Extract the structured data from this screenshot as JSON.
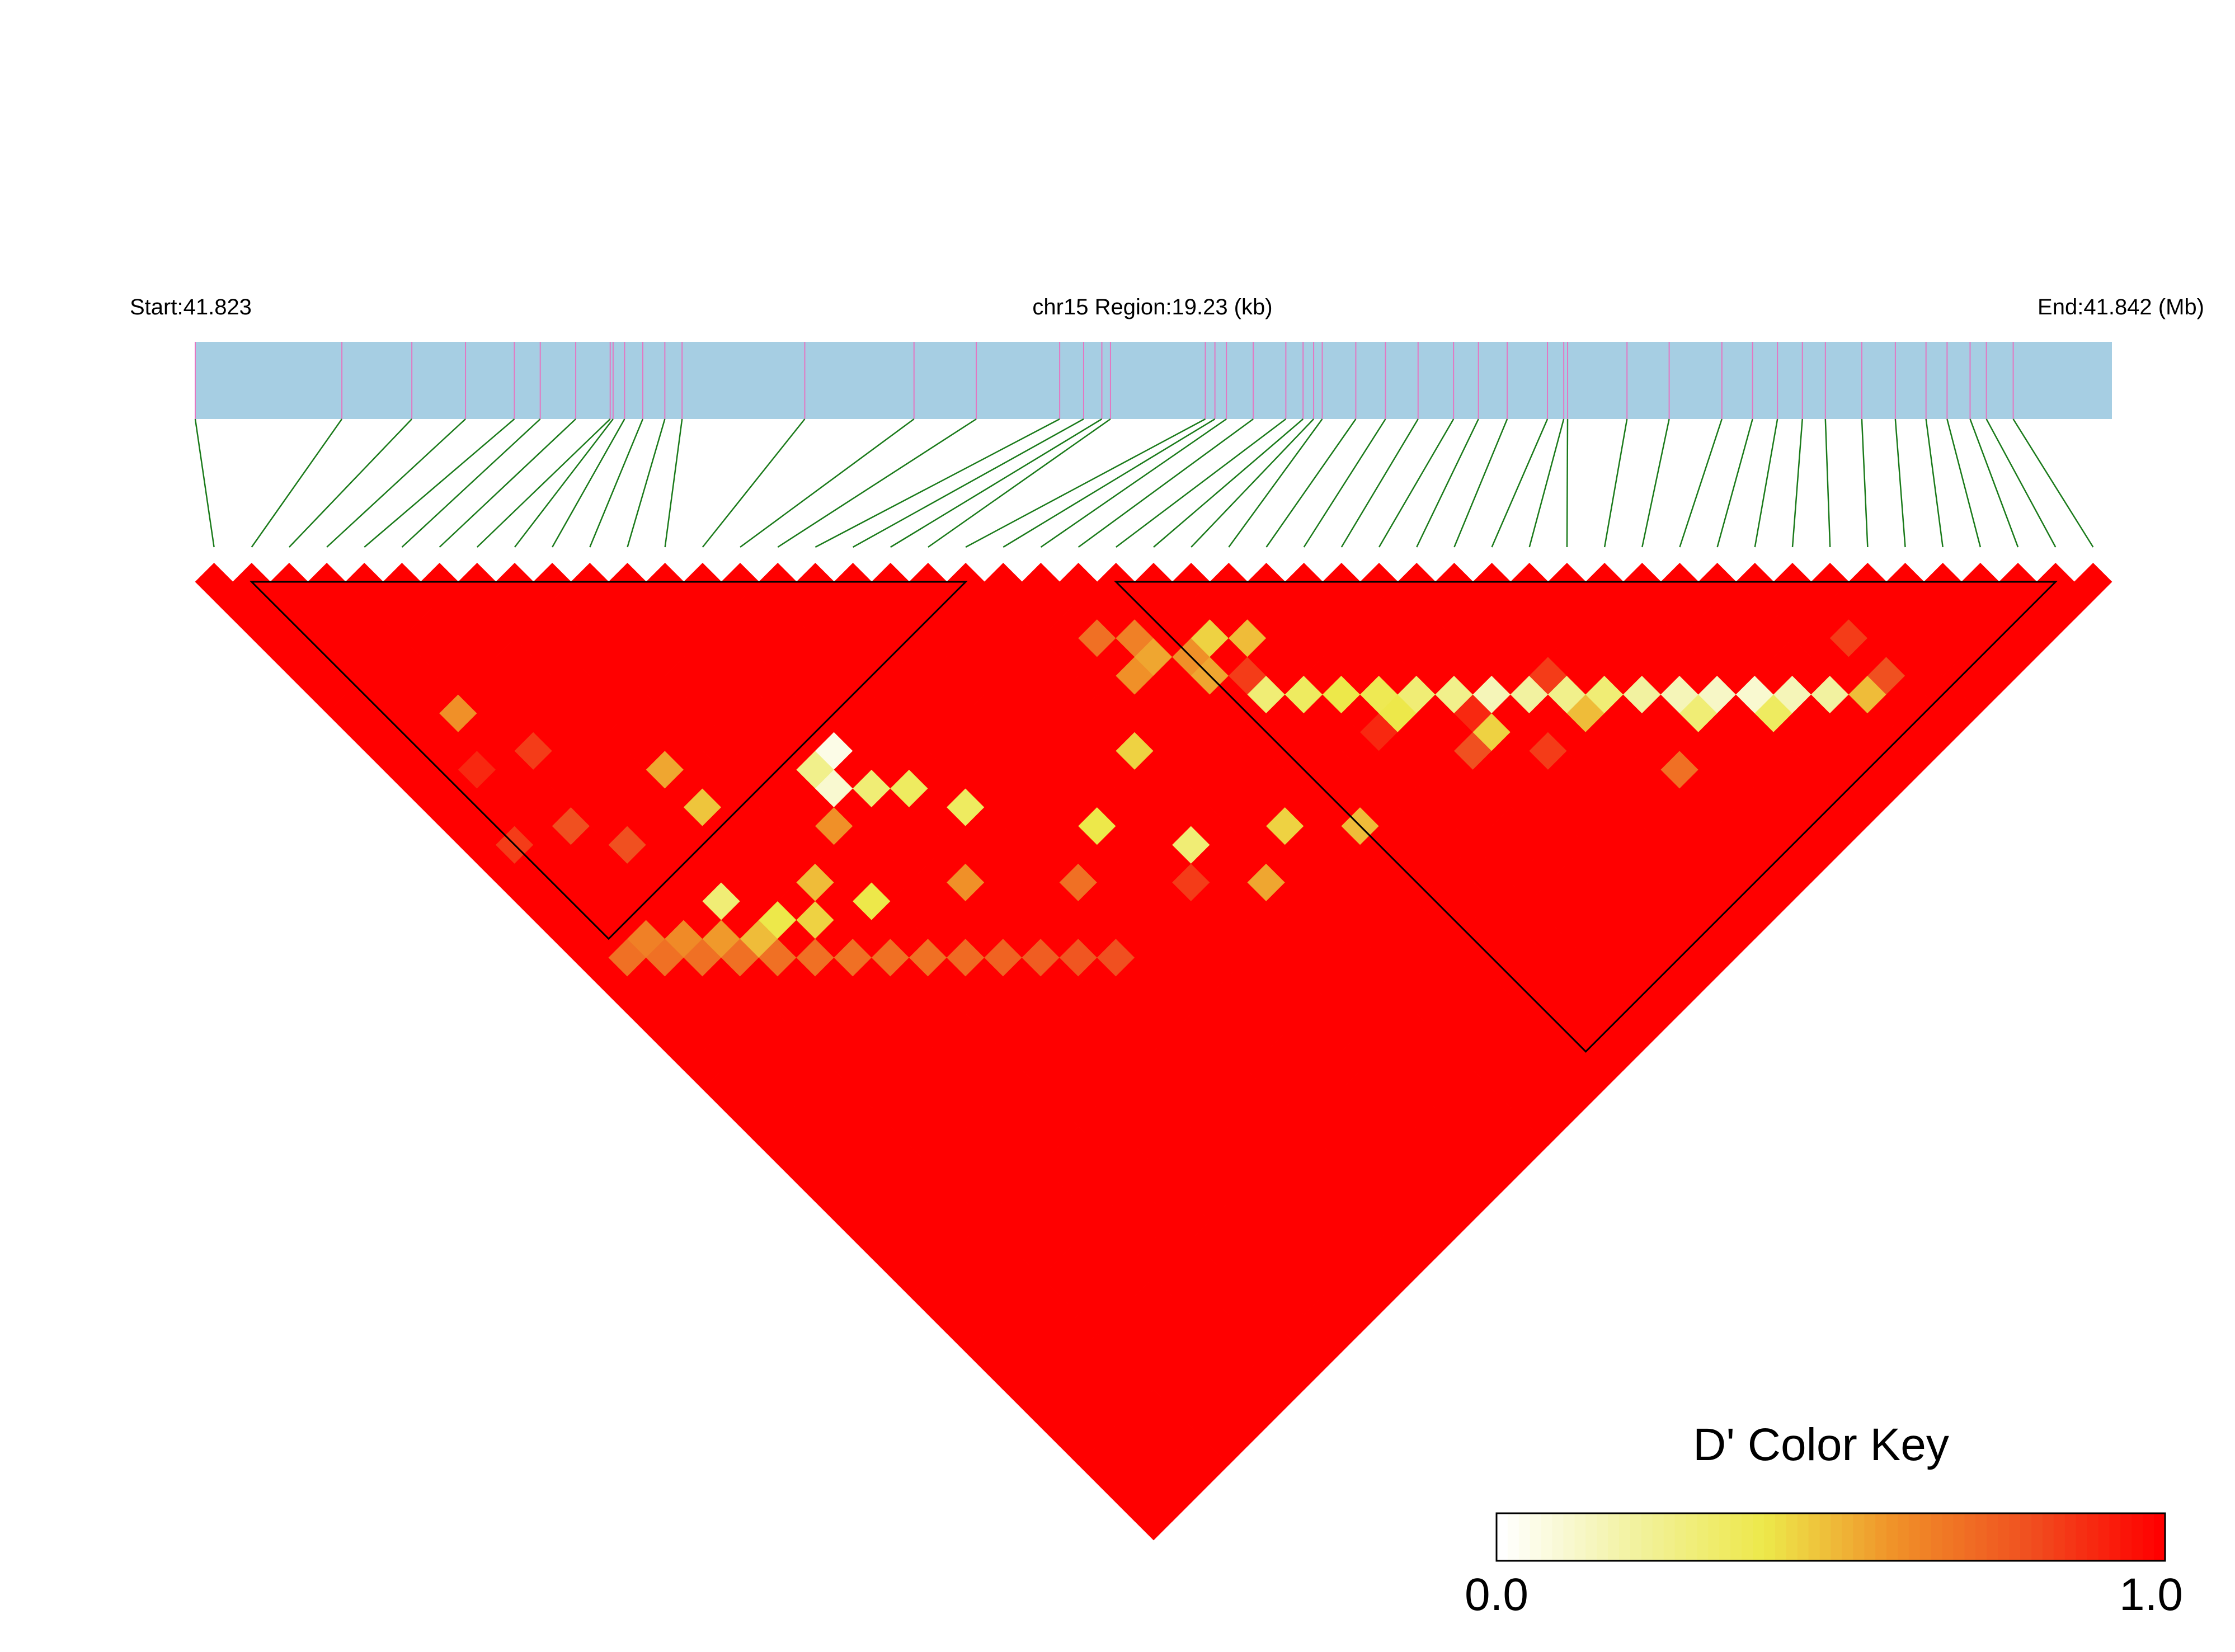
{
  "chart_data": {
    "type": "heatmap",
    "subtype": "linkage-disequilibrium-triangle",
    "chromosome": "chr15",
    "header": {
      "start_label": "Start:41.823",
      "region_label": "chr15 Region:19.23 (kb)",
      "end_label": "End:41.842 (Mb)"
    },
    "region_kb": 19.23,
    "start_mb": 41.823,
    "end_mb": 41.842,
    "n_snps": 51,
    "snp_relative_positions": [
      0.0,
      0.0765,
      0.113,
      0.141,
      0.1665,
      0.18,
      0.1985,
      0.2165,
      0.218,
      0.224,
      0.2335,
      0.245,
      0.254,
      0.318,
      0.375,
      0.4075,
      0.451,
      0.4635,
      0.473,
      0.4775,
      0.527,
      0.532,
      0.538,
      0.552,
      0.569,
      0.578,
      0.5835,
      0.588,
      0.6055,
      0.621,
      0.638,
      0.6565,
      0.6695,
      0.6845,
      0.7055,
      0.714,
      0.716,
      0.747,
      0.769,
      0.7965,
      0.8125,
      0.8255,
      0.8385,
      0.8505,
      0.8695,
      0.887,
      0.903,
      0.914,
      0.926,
      0.9345,
      0.9485
    ],
    "color_scale": {
      "title": "D' Color Key",
      "min_label": "0.0",
      "max_label": "1.0",
      "min": 0.0,
      "max": 1.0,
      "colors": [
        "#ffffff",
        "#f2f2a0",
        "#ede84a",
        "#f09028",
        "#f05020",
        "#ff0000"
      ]
    },
    "default_dprime": 1.0,
    "low_dprime_pairs": [
      [
        1,
        15,
        0.85
      ],
      [
        7,
        17,
        0.55
      ],
      [
        3,
        10,
        0.6
      ],
      [
        7,
        19,
        0.48
      ],
      [
        4,
        13,
        0.85
      ],
      [
        3,
        16,
        0.8
      ],
      [
        4,
        18,
        0.8
      ],
      [
        2,
        12,
        0.9
      ],
      [
        10,
        23,
        0.6
      ],
      [
        20,
        29,
        0.45
      ],
      [
        31,
        40,
        0.85
      ],
      [
        27,
        35,
        0.9
      ],
      [
        33,
        38,
        0.85
      ],
      [
        42,
        45,
        0.85
      ],
      [
        29,
        38,
        0.8
      ],
      [
        30,
        37,
        0.9
      ],
      [
        34,
        44,
        0.7
      ],
      [
        42,
        47,
        0.8
      ],
      [
        25,
        30,
        0.85
      ],
      [
        1,
        21,
        0.7
      ],
      [
        2,
        22,
        0.7
      ],
      [
        3,
        23,
        0.7
      ],
      [
        4,
        24,
        0.7
      ],
      [
        5,
        25,
        0.7
      ],
      [
        6,
        26,
        0.7
      ],
      [
        7,
        27,
        0.7
      ],
      [
        8,
        28,
        0.7
      ],
      [
        9,
        29,
        0.7
      ],
      [
        10,
        30,
        0.72
      ],
      [
        11,
        31,
        0.74
      ],
      [
        12,
        32,
        0.76
      ],
      [
        13,
        33,
        0.78
      ],
      [
        14,
        34,
        0.8
      ],
      [
        2,
        21,
        0.65
      ],
      [
        3,
        22,
        0.62
      ],
      [
        4,
        23,
        0.58
      ],
      [
        5,
        24,
        0.5
      ],
      [
        11,
        22,
        0.1
      ],
      [
        11,
        21,
        0.25
      ],
      [
        12,
        23,
        0.3
      ],
      [
        13,
        24,
        0.35
      ],
      [
        12,
        21,
        0.05
      ],
      [
        6,
        24,
        0.4
      ],
      [
        7,
        25,
        0.45
      ],
      [
        23,
        27,
        0.55
      ],
      [
        22,
        27,
        0.6
      ],
      [
        23,
        26,
        0.65
      ],
      [
        22,
        25,
        0.7
      ],
      [
        25,
        28,
        0.45
      ],
      [
        26,
        29,
        0.5
      ],
      [
        24,
        29,
        0.55
      ],
      [
        24,
        28,
        0.6
      ],
      [
        25,
        31,
        0.3
      ],
      [
        26,
        32,
        0.35
      ],
      [
        27,
        33,
        0.4
      ],
      [
        28,
        34,
        0.38
      ],
      [
        29,
        35,
        0.3
      ],
      [
        30,
        36,
        0.25
      ],
      [
        31,
        37,
        0.15
      ],
      [
        32,
        38,
        0.2
      ],
      [
        33,
        39,
        0.25
      ],
      [
        34,
        40,
        0.3
      ],
      [
        35,
        41,
        0.2
      ],
      [
        36,
        42,
        0.15
      ],
      [
        37,
        43,
        0.12
      ],
      [
        38,
        44,
        0.1
      ],
      [
        39,
        45,
        0.15
      ],
      [
        40,
        46,
        0.2
      ],
      [
        28,
        35,
        0.4
      ],
      [
        30,
        38,
        0.45
      ],
      [
        33,
        40,
        0.5
      ],
      [
        36,
        43,
        0.3
      ],
      [
        38,
        45,
        0.35
      ],
      [
        41,
        47,
        0.5
      ],
      [
        14,
        26,
        0.35
      ],
      [
        17,
        30,
        0.4
      ],
      [
        19,
        33,
        0.3
      ],
      [
        22,
        35,
        0.45
      ],
      [
        24,
        37,
        0.5
      ],
      [
        20,
        36,
        0.55
      ],
      [
        8,
        24,
        0.5
      ],
      [
        12,
        28,
        0.6
      ],
      [
        15,
        31,
        0.7
      ],
      [
        18,
        34,
        0.85
      ],
      [
        9,
        26,
        0.4
      ],
      [
        5,
        22,
        0.3
      ]
    ]
  }
}
